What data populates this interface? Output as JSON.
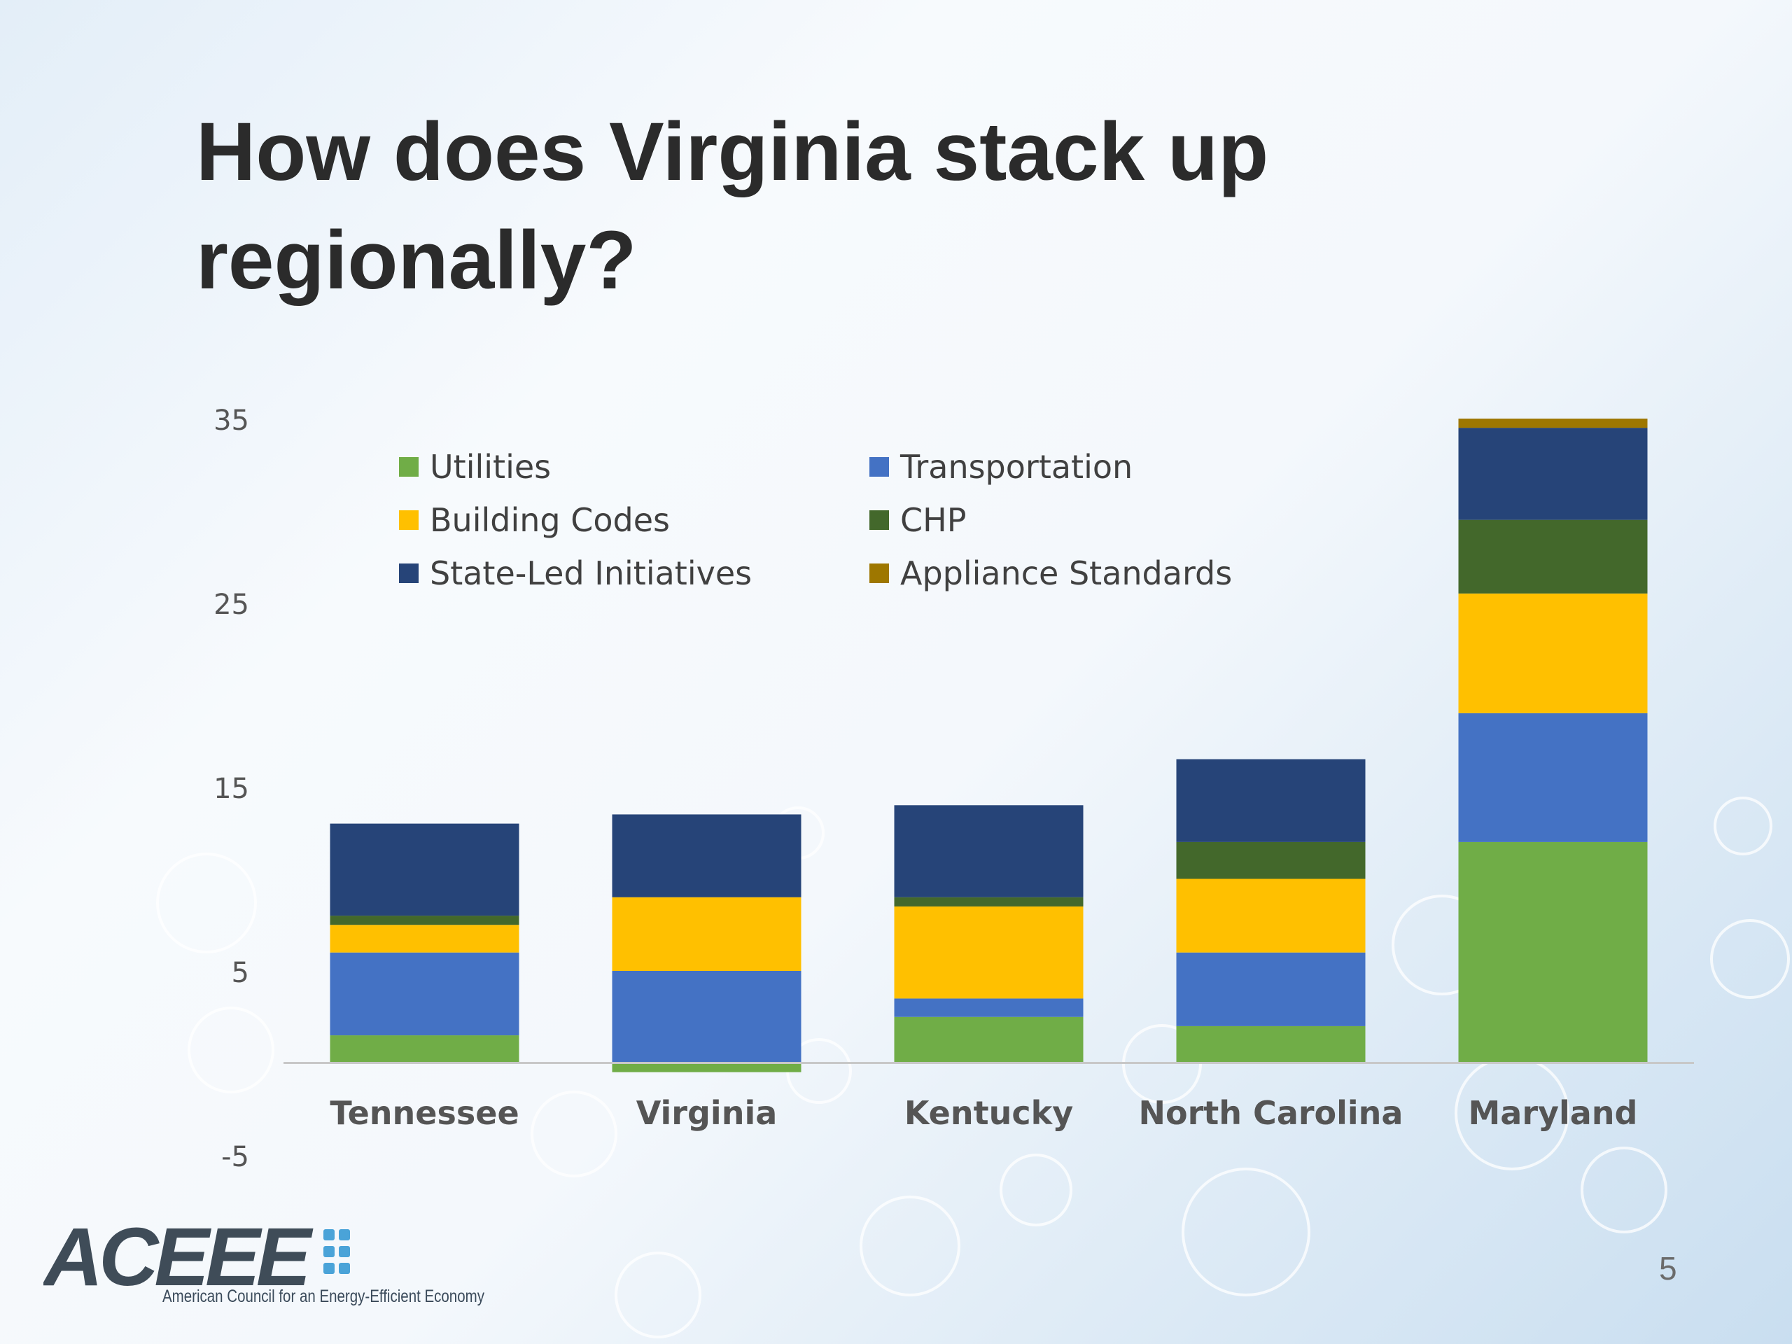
{
  "slide": {
    "title": "How does Virginia stack up regionally?",
    "page_number": "5"
  },
  "logo": {
    "name": "ACEEE",
    "tagline": "American Council for an Energy-Efficient Economy",
    "colors": {
      "wordmark": "#3f4c58",
      "dots": "#4aa3d8"
    }
  },
  "chart_data": {
    "type": "bar",
    "stacked": true,
    "title": "",
    "xlabel": "",
    "ylabel": "",
    "ylim": [
      -5,
      35
    ],
    "yticks": [
      "35",
      "25",
      "15",
      "5",
      "-5"
    ],
    "ytick_values": [
      35,
      25,
      15,
      5,
      -5
    ],
    "grid": false,
    "legend_position": "top-left",
    "categories": [
      "Tennessee",
      "Virginia",
      "Kentucky",
      "North Carolina",
      "Maryland"
    ],
    "series": [
      {
        "name": "Utilities",
        "color": "#70ad47",
        "values": [
          1.5,
          -0.5,
          2.5,
          2,
          12
        ]
      },
      {
        "name": "Transportation",
        "color": "#4472c4",
        "values": [
          4.5,
          5,
          1,
          4,
          7
        ]
      },
      {
        "name": "Building Codes",
        "color": "#ffc000",
        "values": [
          1.5,
          4,
          5,
          4,
          6.5
        ]
      },
      {
        "name": "CHP",
        "color": "#43682b",
        "values": [
          0.5,
          0,
          0.5,
          2,
          4
        ]
      },
      {
        "name": "State-Led Initiatives",
        "color": "#264478",
        "values": [
          5,
          4.5,
          5,
          4.5,
          5
        ]
      },
      {
        "name": "Appliance Standards",
        "color": "#9e7700",
        "values": [
          0,
          0,
          0,
          0,
          0.5
        ]
      }
    ]
  }
}
